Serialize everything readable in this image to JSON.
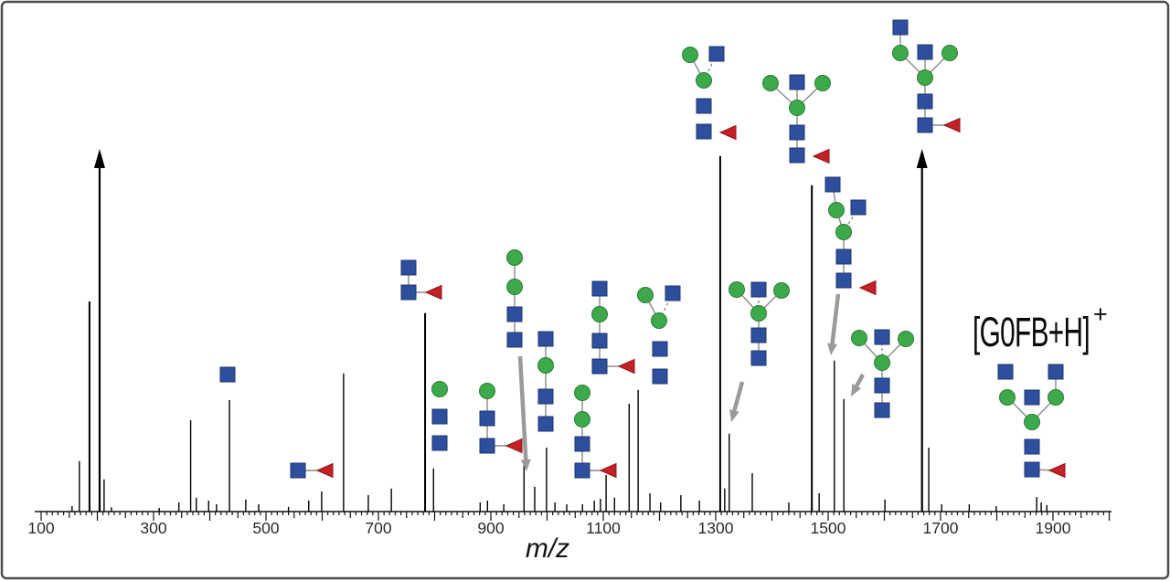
{
  "figure": {
    "xlabel": "m/z",
    "precursor_label_main": "[G0FB+H]",
    "precursor_label_sup": "+"
  },
  "colors": {
    "peak": "#000000",
    "frame_border": "#4d4d4d",
    "hexnac_square_fill": "#2e4f9e",
    "hexnac_square_stroke": "#1d3570",
    "mannose_circle_fill": "#3ea94b",
    "mannose_circle_stroke": "#2a7d36",
    "fucose_triangle_fill": "#c42127",
    "fucose_triangle_stroke": "#8f1217",
    "cartoon_link": "#8a8a8a",
    "pointer_arrow": "#9a9a9a"
  },
  "chart_data": {
    "type": "bar",
    "subtype": "mass-spectrum",
    "title": "",
    "xlabel": "m/z",
    "ylabel": "",
    "x_axis": {
      "min": 100,
      "max": 2000,
      "tick_labels": [
        100,
        300,
        500,
        700,
        900,
        1100,
        1300,
        1500,
        1700,
        1900
      ],
      "minor_tick_interval": 10,
      "medium_tick_interval": 50,
      "major_tick_interval": 100
    },
    "y_axis": {
      "shown": false,
      "intensity_units": "relative %",
      "range": [
        0,
        100
      ]
    },
    "offscale_note": "peaks flagged off are truncated and drawn with an upward arrow",
    "peaks": [
      [
        155,
        1.5
      ],
      [
        168,
        13.8
      ],
      [
        186,
        57.5
      ],
      [
        204,
        100,
        "off"
      ],
      [
        212,
        8.8
      ],
      [
        225,
        1.2
      ],
      [
        310,
        1.0
      ],
      [
        345,
        2.5
      ],
      [
        366,
        25.0
      ],
      [
        376,
        3.8
      ],
      [
        398,
        3.0
      ],
      [
        412,
        2.0
      ],
      [
        435,
        30.5
      ],
      [
        464,
        3.3
      ],
      [
        487,
        2.0
      ],
      [
        540,
        1.3
      ],
      [
        576,
        3.0
      ],
      [
        599,
        5.5
      ],
      [
        638,
        37.8
      ],
      [
        682,
        4.5
      ],
      [
        723,
        6.3
      ],
      [
        783,
        54.3
      ],
      [
        798,
        11.8
      ],
      [
        881,
        2.5
      ],
      [
        894,
        3.0
      ],
      [
        923,
        2.0
      ],
      [
        959,
        12.8
      ],
      [
        978,
        6.8
      ],
      [
        999,
        17.5
      ],
      [
        1014,
        2.5
      ],
      [
        1035,
        2.0
      ],
      [
        1063,
        2.0
      ],
      [
        1084,
        3.0
      ],
      [
        1095,
        3.5
      ],
      [
        1105,
        10.0
      ],
      [
        1120,
        3.8
      ],
      [
        1146,
        29.5
      ],
      [
        1162,
        33.3
      ],
      [
        1183,
        5.0
      ],
      [
        1202,
        2.5
      ],
      [
        1238,
        4.5
      ],
      [
        1271,
        3.0
      ],
      [
        1308,
        97.3
      ],
      [
        1316,
        6.3
      ],
      [
        1324,
        21.3
      ],
      [
        1365,
        10.5
      ],
      [
        1430,
        2.5
      ],
      [
        1471,
        89.3
      ],
      [
        1484,
        5.0
      ],
      [
        1511,
        41.3
      ],
      [
        1528,
        30.8
      ],
      [
        1601,
        3.3
      ],
      [
        1667,
        100,
        "off"
      ],
      [
        1679,
        17.5
      ],
      [
        1702,
        2.0
      ],
      [
        1751,
        2.0
      ],
      [
        1799,
        1.5
      ],
      [
        1871,
        4.0
      ],
      [
        1879,
        2.5
      ],
      [
        1889,
        1.8
      ]
    ],
    "glycan_symbols": {
      "square": "HexNAc (GlcNAc)",
      "circle": "Hexose (Mannose)",
      "triangle": "Fucose"
    },
    "annotations": [
      {
        "id": "an1",
        "nodes": [
          [
            "square",
            249,
            410
          ]
        ],
        "edges": []
      },
      {
        "id": "an2",
        "nodes": [
          [
            "square",
            326,
            515
          ],
          [
            "triangle",
            356,
            515
          ]
        ],
        "edges": [
          [
            0,
            1,
            "s"
          ]
        ]
      },
      {
        "id": "an3",
        "nodes": [
          [
            "square",
            447,
            293
          ],
          [
            "square",
            447,
            320
          ],
          [
            "triangle",
            475,
            320
          ]
        ],
        "edges": [
          [
            0,
            1,
            "s"
          ],
          [
            1,
            2,
            "s"
          ]
        ]
      },
      {
        "id": "an4",
        "nodes": [
          [
            "circle",
            481,
            426
          ],
          [
            "square",
            481,
            456
          ],
          [
            "square",
            481,
            485
          ]
        ],
        "edges": []
      },
      {
        "id": "an5",
        "nodes": [
          [
            "circle",
            533,
            428
          ],
          [
            "square",
            533,
            458
          ],
          [
            "square",
            533,
            488
          ],
          [
            "triangle",
            563,
            488
          ]
        ],
        "edges": [
          [
            0,
            1,
            "s"
          ],
          [
            1,
            2,
            "s"
          ],
          [
            2,
            3,
            "s"
          ]
        ]
      },
      {
        "id": "an6",
        "nodes": [
          [
            "circle",
            563,
            282
          ],
          [
            "circle",
            563,
            314
          ],
          [
            "square",
            563,
            344
          ],
          [
            "square",
            563,
            372
          ]
        ],
        "edges": [
          [
            0,
            1,
            "s"
          ],
          [
            1,
            2,
            "s"
          ],
          [
            2,
            3,
            "s"
          ]
        ],
        "arrow": [
          569,
          390,
          576,
          516
        ]
      },
      {
        "id": "an7",
        "nodes": [
          [
            "square",
            597,
            371
          ],
          [
            "circle",
            597,
            400
          ],
          [
            "square",
            597,
            434
          ],
          [
            "square",
            597,
            464
          ]
        ],
        "edges": [
          [
            0,
            1,
            "s"
          ],
          [
            1,
            2,
            "s"
          ],
          [
            2,
            3,
            "s"
          ]
        ]
      },
      {
        "id": "an8",
        "nodes": [
          [
            "circle",
            637,
            430
          ],
          [
            "circle",
            637,
            459
          ],
          [
            "square",
            637,
            486
          ],
          [
            "square",
            637,
            515
          ],
          [
            "triangle",
            666,
            515
          ]
        ],
        "edges": [
          [
            0,
            1,
            "s"
          ],
          [
            1,
            2,
            "s"
          ],
          [
            2,
            3,
            "s"
          ],
          [
            3,
            4,
            "s"
          ]
        ]
      },
      {
        "id": "an9",
        "nodes": [
          [
            "square",
            656,
            316
          ],
          [
            "circle",
            656,
            344
          ],
          [
            "square",
            656,
            373
          ],
          [
            "square",
            656,
            401
          ],
          [
            "triangle",
            686,
            401
          ]
        ],
        "edges": [
          [
            0,
            1,
            "s"
          ],
          [
            1,
            2,
            "s"
          ],
          [
            2,
            3,
            "s"
          ],
          [
            3,
            4,
            "s"
          ]
        ]
      },
      {
        "id": "an10",
        "nodes": [
          [
            "circle",
            706,
            323
          ],
          [
            "square",
            736,
            321
          ],
          [
            "circle",
            721,
            351
          ],
          [
            "square",
            722,
            382
          ],
          [
            "square",
            722,
            412
          ]
        ],
        "edges": [
          [
            0,
            2,
            "s"
          ],
          [
            1,
            2,
            "d"
          ]
        ]
      },
      {
        "id": "an11",
        "nodes": [
          [
            "circle",
            755,
            60
          ],
          [
            "square",
            784,
            59
          ],
          [
            "circle",
            770,
            88
          ],
          [
            "square",
            770,
            116
          ],
          [
            "square",
            770,
            144
          ],
          [
            "triangle",
            797,
            145
          ]
        ],
        "edges": [
          [
            0,
            2,
            "s"
          ],
          [
            1,
            2,
            "d"
          ]
        ]
      },
      {
        "id": "an12",
        "nodes": [
          [
            "circle",
            843,
            91
          ],
          [
            "square",
            872,
            90
          ],
          [
            "circle",
            900,
            91
          ],
          [
            "circle",
            872,
            118
          ],
          [
            "square",
            872,
            145
          ],
          [
            "square",
            872,
            170
          ],
          [
            "triangle",
            899,
            171
          ]
        ],
        "edges": [
          [
            0,
            3,
            "s"
          ],
          [
            1,
            3,
            "s"
          ],
          [
            2,
            3,
            "s"
          ],
          [
            3,
            4,
            "s"
          ],
          [
            4,
            5,
            "s"
          ]
        ]
      },
      {
        "id": "an13",
        "nodes": [
          [
            "square",
            985,
            30
          ],
          [
            "circle",
            985,
            58
          ],
          [
            "square",
            1012,
            57
          ],
          [
            "circle",
            1039,
            58
          ],
          [
            "circle",
            1012,
            85
          ],
          [
            "square",
            1012,
            111
          ],
          [
            "square",
            1012,
            137
          ],
          [
            "triangle",
            1042,
            137
          ]
        ],
        "edges": [
          [
            0,
            1,
            "s"
          ],
          [
            1,
            4,
            "s"
          ],
          [
            2,
            4,
            "s"
          ],
          [
            3,
            4,
            "s"
          ],
          [
            4,
            5,
            "s"
          ],
          [
            5,
            6,
            "s"
          ],
          [
            6,
            7,
            "s"
          ]
        ]
      },
      {
        "id": "an14",
        "nodes": [
          [
            "circle",
            806,
            317
          ],
          [
            "square",
            830,
            317
          ],
          [
            "circle",
            855,
            318
          ],
          [
            "circle",
            830,
            343
          ],
          [
            "square",
            830,
            367
          ],
          [
            "square",
            830,
            392
          ]
        ],
        "edges": [
          [
            0,
            3,
            "s"
          ],
          [
            1,
            3,
            "d"
          ],
          [
            2,
            3,
            "s"
          ],
          [
            3,
            4,
            "s"
          ],
          [
            4,
            5,
            "s"
          ]
        ],
        "arrow": [
          812,
          418,
          800,
          462
        ]
      },
      {
        "id": "an15",
        "nodes": [
          [
            "square",
            911,
            202
          ],
          [
            "circle",
            915,
            230
          ],
          [
            "square",
            939,
            227
          ],
          [
            "circle",
            923,
            254
          ],
          [
            "square",
            923,
            281
          ],
          [
            "square",
            923,
            307
          ],
          [
            "triangle",
            950,
            315
          ]
        ],
        "edges": [
          [
            0,
            1,
            "s"
          ],
          [
            1,
            3,
            "s"
          ],
          [
            2,
            3,
            "d"
          ],
          [
            3,
            4,
            "s"
          ],
          [
            4,
            5,
            "s"
          ]
        ],
        "arrow": [
          917,
          322,
          909,
          389
        ]
      },
      {
        "id": "an16",
        "nodes": [
          [
            "circle",
            940,
            370
          ],
          [
            "square",
            965,
            369
          ],
          [
            "circle",
            991,
            371
          ],
          [
            "circle",
            965,
            397
          ],
          [
            "square",
            965,
            422
          ],
          [
            "square",
            965,
            449
          ]
        ],
        "edges": [
          [
            0,
            3,
            "s"
          ],
          [
            1,
            3,
            "d"
          ],
          [
            2,
            3,
            "s"
          ],
          [
            3,
            4,
            "s"
          ],
          [
            4,
            5,
            "s"
          ]
        ],
        "arrow": [
          944,
          410,
          931,
          434
        ]
      },
      {
        "id": "an17",
        "nodes": [
          [
            "square",
            1100,
            407
          ],
          [
            "square",
            1155,
            407
          ],
          [
            "circle",
            1102,
            435
          ],
          [
            "square",
            1129,
            435
          ],
          [
            "circle",
            1155,
            435
          ],
          [
            "circle",
            1129,
            462
          ],
          [
            "square",
            1129,
            489
          ],
          [
            "square",
            1129,
            514
          ],
          [
            "triangle",
            1157,
            515
          ]
        ],
        "edges": [
          [
            1,
            4,
            "s"
          ],
          [
            2,
            5,
            "s"
          ],
          [
            4,
            5,
            "s"
          ],
          [
            7,
            8,
            "s"
          ]
        ]
      }
    ]
  }
}
